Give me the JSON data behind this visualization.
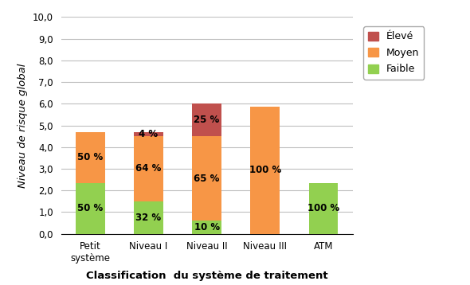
{
  "categories": [
    "Petit\nsystème",
    "Niveau I",
    "Niveau II",
    "Niveau III",
    "ATM"
  ],
  "faible": [
    2.35,
    1.5,
    0.6,
    0.0,
    2.35
  ],
  "moyen": [
    2.35,
    3.0,
    3.9,
    5.85,
    0.0
  ],
  "eleve": [
    0.0,
    0.2,
    1.5,
    0.0,
    0.0
  ],
  "faible_pct": [
    "50 %",
    "32 %",
    "10 %",
    "",
    "100 %"
  ],
  "moyen_pct": [
    "50 %",
    "64 %",
    "65 %",
    "100 %",
    ""
  ],
  "eleve_pct": [
    "",
    "4 %",
    "25 %",
    "",
    ""
  ],
  "color_faible": "#92D050",
  "color_moyen": "#F79646",
  "color_eleve": "#C0504D",
  "ylabel": "Niveau de risque global",
  "xlabel": "Classification  du système de traitement",
  "ylim": [
    0,
    10
  ],
  "yticks": [
    0.0,
    1.0,
    2.0,
    3.0,
    4.0,
    5.0,
    6.0,
    7.0,
    8.0,
    9.0,
    10.0
  ],
  "ytick_labels": [
    "0,0",
    "1,0",
    "2,0",
    "3,0",
    "4,0",
    "5,0",
    "6,0",
    "7,0",
    "8,0",
    "9,0",
    "10,0"
  ],
  "legend_labels": [
    "Élevé",
    "Moyen",
    "Faible"
  ],
  "bar_width": 0.5,
  "label_fontsize": 8.5,
  "tick_fontsize": 8.5,
  "axis_label_fontsize": 9.5,
  "legend_fontsize": 9,
  "bg_color": "#FFFFFF",
  "grid_color": "#BFBFBF"
}
